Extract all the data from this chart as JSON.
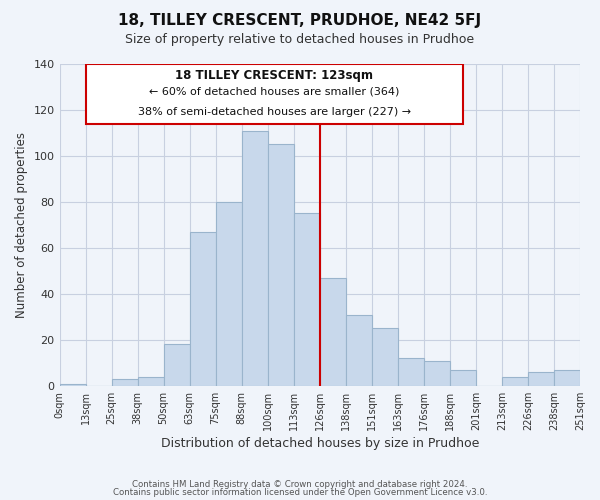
{
  "title": "18, TILLEY CRESCENT, PRUDHOE, NE42 5FJ",
  "subtitle": "Size of property relative to detached houses in Prudhoe",
  "xlabel": "Distribution of detached houses by size in Prudhoe",
  "ylabel": "Number of detached properties",
  "bin_labels": [
    "0sqm",
    "13sqm",
    "25sqm",
    "38sqm",
    "50sqm",
    "63sqm",
    "75sqm",
    "88sqm",
    "100sqm",
    "113sqm",
    "126sqm",
    "138sqm",
    "151sqm",
    "163sqm",
    "176sqm",
    "188sqm",
    "201sqm",
    "213sqm",
    "226sqm",
    "238sqm",
    "251sqm"
  ],
  "bar_heights": [
    1,
    0,
    3,
    4,
    18,
    67,
    80,
    111,
    105,
    75,
    47,
    31,
    25,
    12,
    11,
    7,
    0,
    4,
    6,
    7
  ],
  "bar_color": "#c8d8eb",
  "bar_edge_color": "#9ab4cc",
  "highlight_line_color": "#cc0000",
  "annotation_title": "18 TILLEY CRESCENT: 123sqm",
  "annotation_line1": "← 60% of detached houses are smaller (364)",
  "annotation_line2": "38% of semi-detached houses are larger (227) →",
  "annotation_box_color": "#ffffff",
  "annotation_box_edge_color": "#cc0000",
  "ylim": [
    0,
    140
  ],
  "yticks": [
    0,
    20,
    40,
    60,
    80,
    100,
    120,
    140
  ],
  "footer1": "Contains HM Land Registry data © Crown copyright and database right 2024.",
  "footer2": "Contains public sector information licensed under the Open Government Licence v3.0.",
  "bg_color": "#f0f4fa",
  "grid_color": "#c8d0e0"
}
